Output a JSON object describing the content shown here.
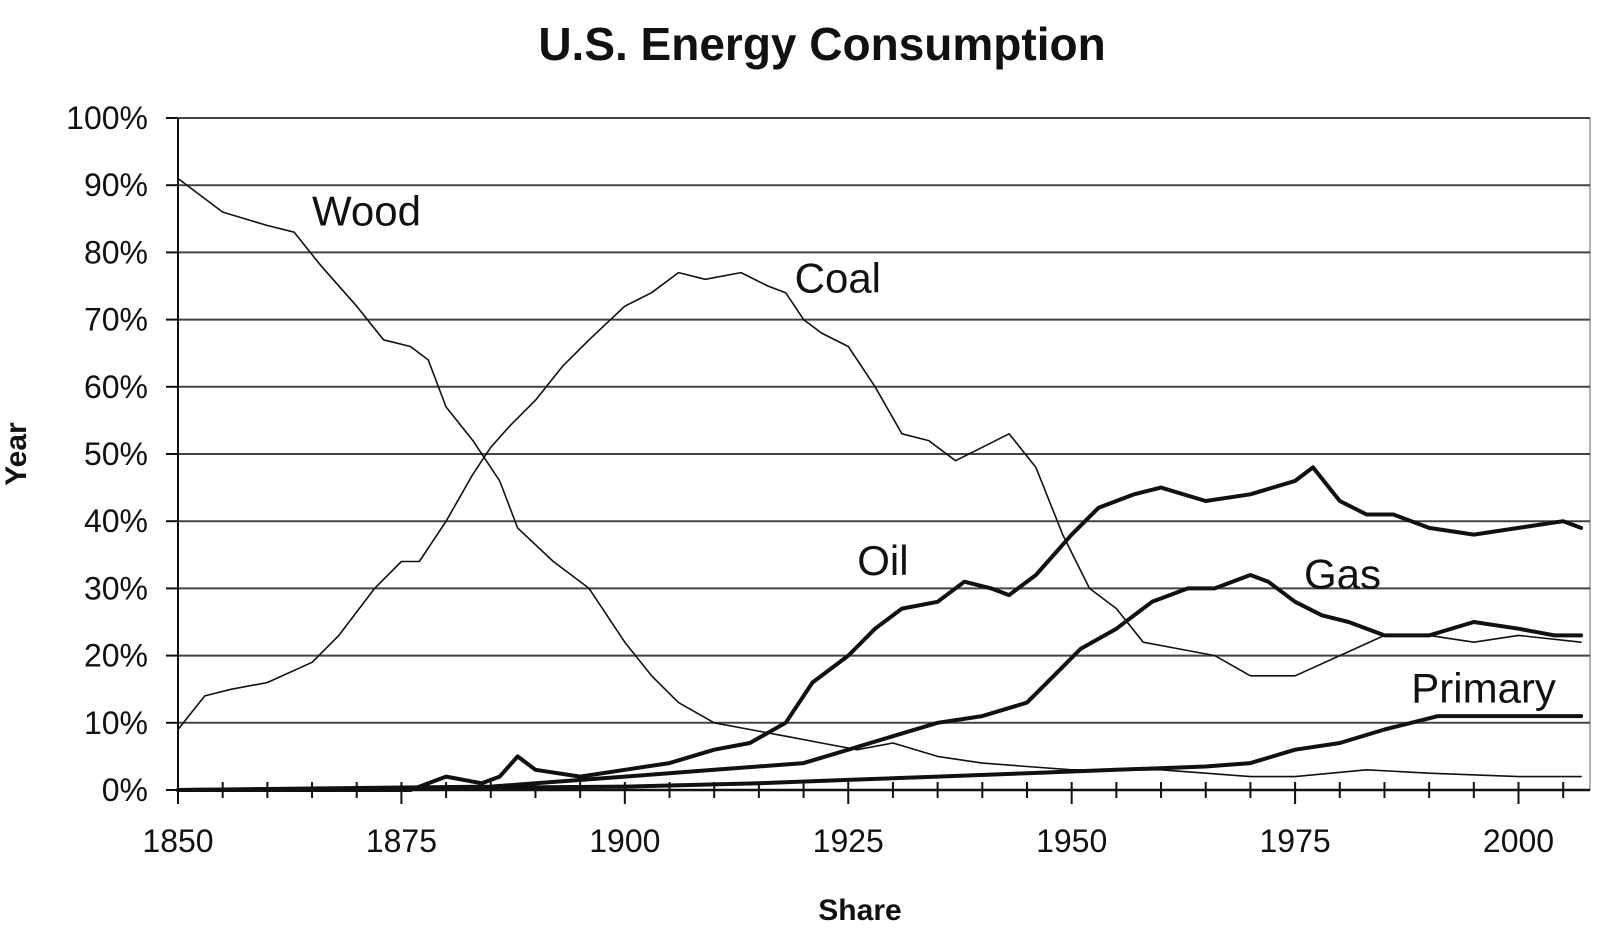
{
  "chart_data": {
    "type": "line",
    "title": "U.S. Energy Consumption",
    "xlabel": "Share",
    "ylabel": "Year",
    "xlim": [
      1850,
      2008
    ],
    "ylim": [
      0,
      100
    ],
    "x_ticks": [
      "1850",
      "1875",
      "1900",
      "1925",
      "1950",
      "1975",
      "2000"
    ],
    "x_tick_values": [
      1850,
      1875,
      1900,
      1925,
      1950,
      1975,
      2000
    ],
    "y_ticks": [
      "0%",
      "10%",
      "20%",
      "30%",
      "40%",
      "50%",
      "60%",
      "70%",
      "80%",
      "90%",
      "100%"
    ],
    "y_tick_values": [
      0,
      10,
      20,
      30,
      40,
      50,
      60,
      70,
      80,
      90,
      100
    ],
    "grid": true,
    "legend": "none",
    "series": [
      {
        "name": "Wood",
        "weight": "thin",
        "label_at": [
          1865,
          84
        ],
        "points": [
          [
            1850,
            91
          ],
          [
            1855,
            86
          ],
          [
            1860,
            84
          ],
          [
            1863,
            83
          ],
          [
            1866,
            78
          ],
          [
            1870,
            72
          ],
          [
            1873,
            67
          ],
          [
            1876,
            66
          ],
          [
            1878,
            64
          ],
          [
            1880,
            57
          ],
          [
            1883,
            52
          ],
          [
            1886,
            46
          ],
          [
            1888,
            39
          ],
          [
            1892,
            34
          ],
          [
            1896,
            30
          ],
          [
            1900,
            22
          ],
          [
            1903,
            17
          ],
          [
            1906,
            13
          ],
          [
            1910,
            10
          ],
          [
            1914,
            9
          ],
          [
            1918,
            8
          ],
          [
            1922,
            7
          ],
          [
            1926,
            6
          ],
          [
            1930,
            7
          ],
          [
            1935,
            5
          ],
          [
            1940,
            4
          ],
          [
            1945,
            3.5
          ],
          [
            1950,
            3
          ],
          [
            1960,
            3
          ],
          [
            1970,
            2
          ],
          [
            1975,
            2
          ],
          [
            1983,
            3
          ],
          [
            1990,
            2.5
          ],
          [
            2000,
            2
          ],
          [
            2007,
            2
          ]
        ]
      },
      {
        "name": "Coal",
        "weight": "thin",
        "label_at": [
          1919,
          74
        ],
        "points": [
          [
            1850,
            9
          ],
          [
            1853,
            14
          ],
          [
            1856,
            15
          ],
          [
            1860,
            16
          ],
          [
            1865,
            19
          ],
          [
            1868,
            23
          ],
          [
            1872,
            30
          ],
          [
            1875,
            34
          ],
          [
            1877,
            34
          ],
          [
            1880,
            40
          ],
          [
            1883,
            47
          ],
          [
            1885,
            51
          ],
          [
            1887,
            54
          ],
          [
            1890,
            58
          ],
          [
            1893,
            63
          ],
          [
            1896,
            67
          ],
          [
            1900,
            72
          ],
          [
            1903,
            74
          ],
          [
            1906,
            77
          ],
          [
            1909,
            76
          ],
          [
            1913,
            77
          ],
          [
            1916,
            75
          ],
          [
            1918,
            74
          ],
          [
            1920,
            70
          ],
          [
            1922,
            68
          ],
          [
            1925,
            66
          ],
          [
            1928,
            60
          ],
          [
            1931,
            53
          ],
          [
            1934,
            52
          ],
          [
            1937,
            49
          ],
          [
            1940,
            51
          ],
          [
            1943,
            53
          ],
          [
            1946,
            48
          ],
          [
            1949,
            38
          ],
          [
            1952,
            30
          ],
          [
            1955,
            27
          ],
          [
            1958,
            22
          ],
          [
            1962,
            21
          ],
          [
            1966,
            20
          ],
          [
            1970,
            17
          ],
          [
            1975,
            17
          ],
          [
            1980,
            20
          ],
          [
            1985,
            23
          ],
          [
            1990,
            23
          ],
          [
            1995,
            22
          ],
          [
            2000,
            23
          ],
          [
            2007,
            22
          ]
        ]
      },
      {
        "name": "Oil",
        "weight": "thick",
        "label_at": [
          1926,
          32
        ],
        "points": [
          [
            1850,
            0
          ],
          [
            1876,
            0
          ],
          [
            1880,
            2
          ],
          [
            1884,
            1
          ],
          [
            1886,
            2
          ],
          [
            1888,
            5
          ],
          [
            1890,
            3
          ],
          [
            1895,
            2
          ],
          [
            1900,
            3
          ],
          [
            1905,
            4
          ],
          [
            1910,
            6
          ],
          [
            1914,
            7
          ],
          [
            1918,
            10
          ],
          [
            1921,
            16
          ],
          [
            1925,
            20
          ],
          [
            1928,
            24
          ],
          [
            1931,
            27
          ],
          [
            1935,
            28
          ],
          [
            1938,
            31
          ],
          [
            1941,
            30
          ],
          [
            1943,
            29
          ],
          [
            1946,
            32
          ],
          [
            1950,
            38
          ],
          [
            1953,
            42
          ],
          [
            1957,
            44
          ],
          [
            1960,
            45
          ],
          [
            1965,
            43
          ],
          [
            1970,
            44
          ],
          [
            1975,
            46
          ],
          [
            1977,
            48
          ],
          [
            1980,
            43
          ],
          [
            1983,
            41
          ],
          [
            1986,
            41
          ],
          [
            1990,
            39
          ],
          [
            1995,
            38
          ],
          [
            2000,
            39
          ],
          [
            2005,
            40
          ],
          [
            2007,
            39
          ]
        ]
      },
      {
        "name": "Gas",
        "weight": "thick",
        "label_at": [
          1976,
          30
        ],
        "points": [
          [
            1850,
            0
          ],
          [
            1885,
            0.5
          ],
          [
            1890,
            1
          ],
          [
            1900,
            2
          ],
          [
            1910,
            3
          ],
          [
            1920,
            4
          ],
          [
            1925,
            6
          ],
          [
            1930,
            8
          ],
          [
            1935,
            10
          ],
          [
            1940,
            11
          ],
          [
            1945,
            13
          ],
          [
            1948,
            17
          ],
          [
            1951,
            21
          ],
          [
            1955,
            24
          ],
          [
            1959,
            28
          ],
          [
            1963,
            30
          ],
          [
            1966,
            30
          ],
          [
            1970,
            32
          ],
          [
            1972,
            31
          ],
          [
            1975,
            28
          ],
          [
            1978,
            26
          ],
          [
            1981,
            25
          ],
          [
            1985,
            23
          ],
          [
            1990,
            23
          ],
          [
            1995,
            25
          ],
          [
            2000,
            24
          ],
          [
            2004,
            23
          ],
          [
            2007,
            23
          ]
        ]
      },
      {
        "name": "Primary",
        "weight": "thick",
        "label_at": [
          1988,
          13
        ],
        "points": [
          [
            1850,
            0
          ],
          [
            1900,
            0.5
          ],
          [
            1915,
            1
          ],
          [
            1925,
            1.5
          ],
          [
            1935,
            2
          ],
          [
            1945,
            2.5
          ],
          [
            1955,
            3
          ],
          [
            1965,
            3.5
          ],
          [
            1970,
            4
          ],
          [
            1975,
            6
          ],
          [
            1980,
            7
          ],
          [
            1985,
            9
          ],
          [
            1988,
            10
          ],
          [
            1991,
            11
          ],
          [
            1995,
            11
          ],
          [
            2000,
            11
          ],
          [
            2005,
            11
          ],
          [
            2007,
            11
          ]
        ]
      }
    ]
  }
}
